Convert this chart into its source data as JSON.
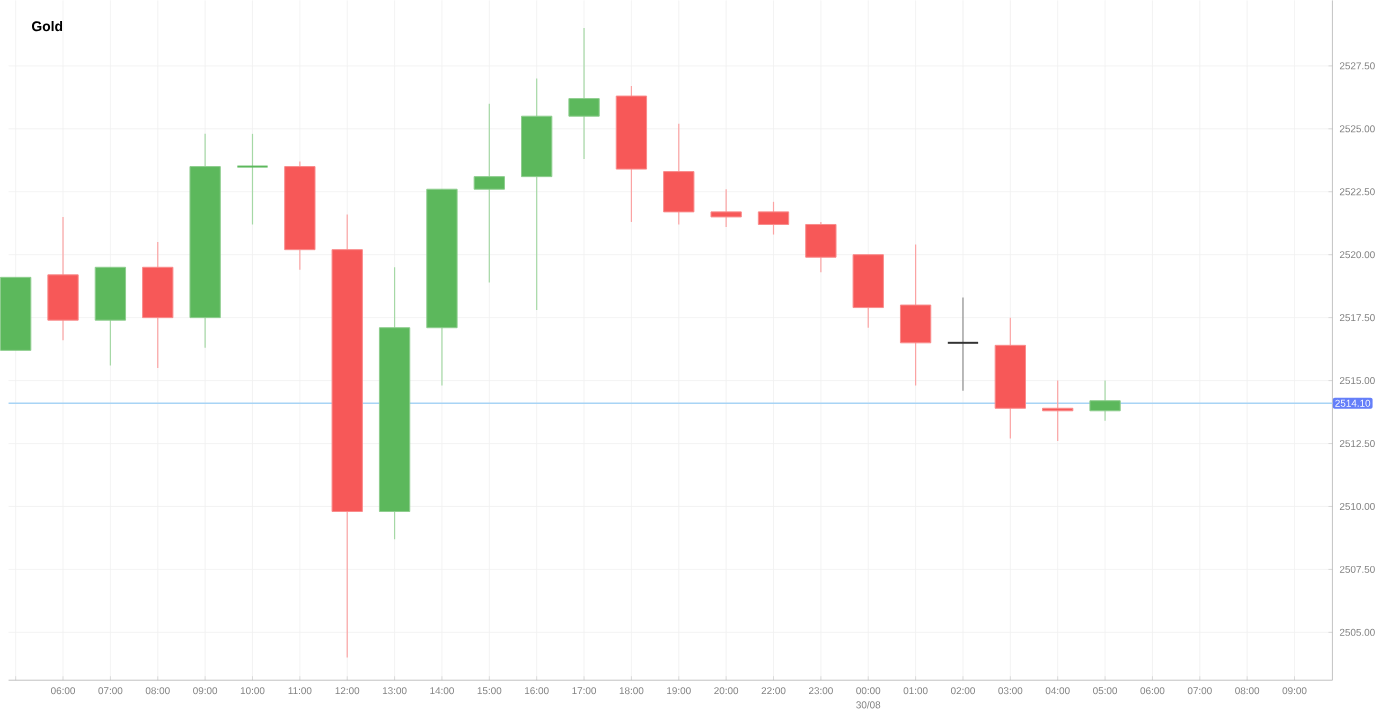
{
  "chart_data": {
    "type": "candlestick",
    "title": "Gold",
    "categories": [
      null,
      "06:00",
      "07:00",
      "08:00",
      "09:00",
      "10:00",
      "11:00",
      "12:00",
      "13:00",
      "14:00",
      "15:00",
      "16:00",
      "17:00",
      "18:00",
      "19:00",
      "20:00",
      "22:00",
      "23:00",
      "00:00",
      "01:00",
      "02:00",
      "03:00",
      "04:00",
      "05:00",
      "06:00",
      "07:00",
      "08:00",
      "09:00"
    ],
    "ohlc": [
      [
        2516.2,
        2519.1,
        2516.2,
        2519.1
      ],
      [
        2519.2,
        2521.5,
        2516.6,
        2517.4
      ],
      [
        2517.4,
        2519.5,
        2515.6,
        2519.5
      ],
      [
        2519.5,
        2520.5,
        2515.5,
        2517.5
      ],
      [
        2517.5,
        2524.8,
        2516.3,
        2523.5
      ],
      [
        2523.5,
        2524.8,
        2521.2,
        2523.5
      ],
      [
        2523.5,
        2523.7,
        2519.4,
        2520.2
      ],
      [
        2520.2,
        2521.6,
        2504.0,
        2509.8
      ],
      [
        2509.8,
        2519.5,
        2508.7,
        2517.1
      ],
      [
        2517.1,
        2522.6,
        2514.8,
        2522.6
      ],
      [
        2522.6,
        2526.0,
        2518.9,
        2523.1
      ],
      [
        2523.1,
        2527.0,
        2517.8,
        2525.5
      ],
      [
        2525.5,
        2529.0,
        2523.8,
        2526.2
      ],
      [
        2526.3,
        2526.7,
        2521.3,
        2523.4
      ],
      [
        2523.3,
        2525.2,
        2521.2,
        2521.7
      ],
      [
        2521.7,
        2522.6,
        2521.1,
        2521.5
      ],
      [
        2521.7,
        2522.1,
        2520.8,
        2521.2
      ],
      [
        2521.2,
        2521.3,
        2519.3,
        2519.9
      ],
      [
        2520.0,
        2520.0,
        2517.1,
        2517.9
      ],
      [
        2518.0,
        2520.4,
        2514.8,
        2516.5
      ],
      [
        2516.5,
        2518.3,
        2514.6,
        2516.5
      ],
      [
        2516.4,
        2517.5,
        2512.7,
        2513.9
      ],
      [
        2513.9,
        2515.0,
        2512.6,
        2513.8
      ],
      [
        2513.8,
        2515.0,
        2513.4,
        2514.2
      ],
      null,
      null,
      null,
      null
    ],
    "colors": [
      "#5cb85c",
      "#f75858",
      "#5cb85c",
      "#f75858",
      "#5cb85c",
      "#5cb85c",
      "#f75858",
      "#f75858",
      "#5cb85c",
      "#5cb85c",
      "#5cb85c",
      "#5cb85c",
      "#5cb85c",
      "#f75858",
      "#f75858",
      "#f75858",
      "#f75858",
      "#f75858",
      "#f75858",
      "#f75858",
      "#333333",
      "#f75858",
      "#f75858",
      "#5cb85c",
      null,
      null,
      null,
      null
    ],
    "ylim": [
      2503.1,
      2530.1
    ],
    "yticks": [
      {
        "value": 2505,
        "label": "2505.00"
      },
      {
        "value": 2507.5,
        "label": "2507.50"
      },
      {
        "value": 2510,
        "label": "2510.00"
      },
      {
        "value": 2512.5,
        "label": "2512.50"
      },
      {
        "value": 2515,
        "label": "2515.00"
      },
      {
        "value": 2517.5,
        "label": "2517.50"
      },
      {
        "value": 2520,
        "label": "2520.00"
      },
      {
        "value": 2522.5,
        "label": "2522.50"
      },
      {
        "value": 2525,
        "label": "2525.00"
      },
      {
        "value": 2527.5,
        "label": "2527.50"
      }
    ],
    "ref_lines": [
      {
        "axis": "y",
        "value": 2514.1,
        "label": "2514.10",
        "color": "#a8d4f5"
      }
    ],
    "annotations": [
      "30/08"
    ],
    "grid": true
  }
}
